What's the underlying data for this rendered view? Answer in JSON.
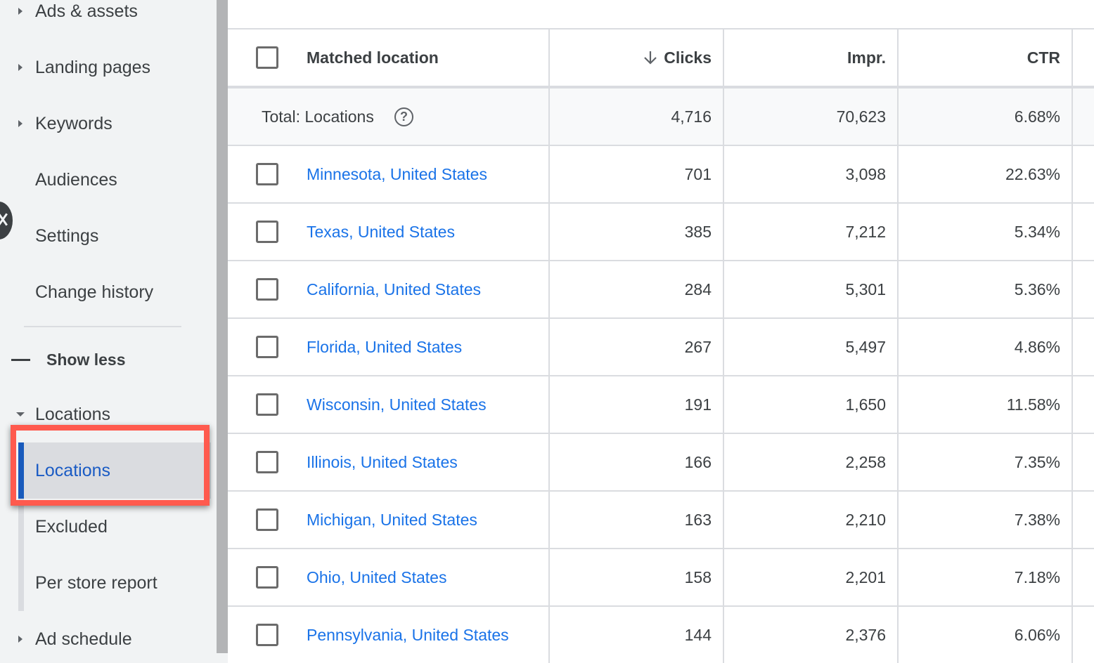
{
  "sidebar": {
    "items": [
      {
        "label": "Ads & assets",
        "caret": "right"
      },
      {
        "label": "Landing pages",
        "caret": "right"
      },
      {
        "label": "Keywords",
        "caret": "right"
      },
      {
        "label": "Audiences",
        "caret": "none"
      },
      {
        "label": "Settings",
        "caret": "none"
      },
      {
        "label": "Change history",
        "caret": "none"
      }
    ],
    "show_less": "Show less",
    "locations_group": {
      "label": "Locations",
      "caret": "down",
      "children": [
        {
          "label": "Locations",
          "active": true
        },
        {
          "label": "Excluded",
          "active": false
        },
        {
          "label": "Per store report",
          "active": false
        }
      ]
    },
    "ad_schedule": "Ad schedule"
  },
  "table": {
    "columns": {
      "location": "Matched location",
      "clicks": "Clicks",
      "impr": "Impr.",
      "ctr": "CTR"
    },
    "sort": {
      "column": "clicks",
      "direction": "descending",
      "icon": "arrow-down-icon"
    },
    "total": {
      "label": "Total: Locations",
      "help_icon": "?",
      "clicks": "4,716",
      "impr": "70,623",
      "ctr": "6.68%"
    },
    "rows": [
      {
        "location": "Minnesota, United States",
        "clicks": "701",
        "impr": "3,098",
        "ctr": "22.63%"
      },
      {
        "location": "Texas, United States",
        "clicks": "385",
        "impr": "7,212",
        "ctr": "5.34%"
      },
      {
        "location": "California, United States",
        "clicks": "284",
        "impr": "5,301",
        "ctr": "5.36%"
      },
      {
        "location": "Florida, United States",
        "clicks": "267",
        "impr": "5,497",
        "ctr": "4.86%"
      },
      {
        "location": "Wisconsin, United States",
        "clicks": "191",
        "impr": "1,650",
        "ctr": "11.58%"
      },
      {
        "location": "Illinois, United States",
        "clicks": "166",
        "impr": "2,258",
        "ctr": "7.35%"
      },
      {
        "location": "Michigan, United States",
        "clicks": "163",
        "impr": "2,210",
        "ctr": "7.38%"
      },
      {
        "location": "Ohio, United States",
        "clicks": "158",
        "impr": "2,201",
        "ctr": "7.18%"
      },
      {
        "location": "Pennsylvania, United States",
        "clicks": "144",
        "impr": "2,376",
        "ctr": "6.06%"
      }
    ]
  },
  "colors": {
    "link": "#1a73e8",
    "active_nav": "#185abc",
    "highlight": "#ff5a4e",
    "sidebar_bg": "#f1f3f4"
  }
}
